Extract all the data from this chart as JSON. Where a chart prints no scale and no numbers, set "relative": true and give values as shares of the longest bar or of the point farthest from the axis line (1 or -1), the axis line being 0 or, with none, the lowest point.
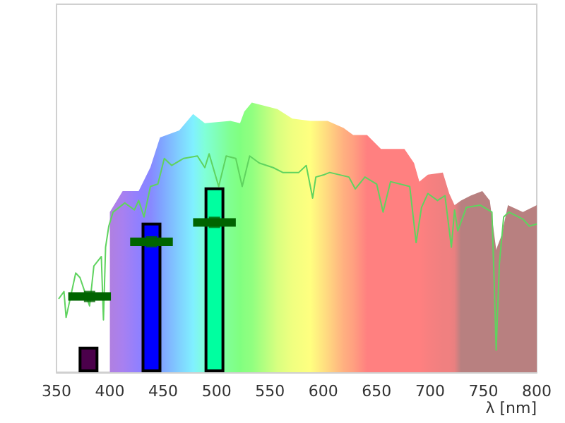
{
  "chart_data": {
    "type": "area",
    "relative": true,
    "xlabel": "λ [nm]",
    "xlim": [
      350,
      800
    ],
    "xticks": [
      350,
      400,
      450,
      500,
      550,
      600,
      650,
      700,
      750,
      800
    ],
    "grid": false,
    "series": [
      {
        "x": [
          400,
          412,
          427,
          438,
          447,
          465,
          478,
          489,
          513,
          522,
          526,
          533,
          557,
          571,
          588,
          604,
          619,
          628,
          641,
          654,
          676,
          685,
          690,
          698,
          712,
          718,
          723,
          729,
          738,
          749,
          756,
          762,
          767,
          773,
          787,
          800
        ],
        "values": [
          0.594,
          0.672,
          0.672,
          0.76,
          0.871,
          0.897,
          0.958,
          0.924,
          0.932,
          0.924,
          0.967,
          1,
          0.976,
          0.941,
          0.932,
          0.932,
          0.906,
          0.88,
          0.88,
          0.828,
          0.828,
          0.776,
          0.707,
          0.733,
          0.741,
          0.663,
          0.62,
          0.637,
          0.655,
          0.672,
          0.637,
          0.455,
          0.507,
          0.62,
          0.594,
          0.62
        ],
        "colors": [
          "#b080e0",
          "#a880f0",
          "#9080ff",
          "#8888ff",
          "#80a0ff",
          "#80d0ff",
          "#80f0ff",
          "#80ffd8",
          "#80ff90",
          "#80ff80",
          "#88ff80",
          "#90ff80",
          "#d8ff80",
          "#f0ff80",
          "#ffff80",
          "#ffd880",
          "#ffb080",
          "#ffa080",
          "#ff8080",
          "#ff8080",
          "#ff8080",
          "#ff8080",
          "#ff8080",
          "#f88080",
          "#f08080",
          "#f08080",
          "#e88080",
          "#b88080",
          "#b88080",
          "#b88080",
          "#b88080",
          "#b88080",
          "#b88080",
          "#b88080",
          "#b88080",
          "#b88080"
        ]
      },
      {
        "type": "line",
        "color": "#5fd35f",
        "line_style": "solid",
        "marker": "none",
        "x": [
          352,
          357,
          359,
          368,
          372,
          381,
          385,
          392,
          394,
          396,
          399,
          403,
          414,
          423,
          427,
          432,
          438,
          445,
          451,
          458,
          469,
          482,
          489,
          493,
          502,
          509,
          518,
          524,
          531,
          540,
          553,
          562,
          577,
          584,
          590,
          593,
          601,
          606,
          624,
          630,
          639,
          650,
          656,
          663,
          681,
          687,
          692,
          698,
          707,
          714,
          720,
          723,
          726,
          734,
          747,
          758,
          760,
          762,
          765,
          769,
          774,
          787,
          793,
          800
        ],
        "values": [
          0.272,
          0.299,
          0.203,
          0.368,
          0.351,
          0.246,
          0.394,
          0.429,
          0.194,
          0.464,
          0.542,
          0.594,
          0.628,
          0.602,
          0.637,
          0.576,
          0.689,
          0.698,
          0.793,
          0.767,
          0.793,
          0.802,
          0.759,
          0.81,
          0.689,
          0.802,
          0.793,
          0.689,
          0.802,
          0.776,
          0.759,
          0.741,
          0.741,
          0.767,
          0.646,
          0.724,
          0.733,
          0.741,
          0.724,
          0.68,
          0.724,
          0.698,
          0.594,
          0.707,
          0.689,
          0.481,
          0.611,
          0.663,
          0.637,
          0.655,
          0.464,
          0.602,
          0.524,
          0.611,
          0.62,
          0.594,
          0.351,
          0.082,
          0.403,
          0.576,
          0.594,
          0.568,
          0.542,
          0.55
        ]
      },
      {
        "type": "scatter",
        "color": "#006400",
        "marker": "square",
        "x": [
          381,
          439,
          498
        ],
        "values": [
          0.281,
          0.484,
          0.556
        ],
        "xerrors": [
          20,
          20,
          20
        ]
      },
      {
        "type": "bar",
        "x": [
          380,
          439,
          498
        ],
        "values": [
          0.095,
          0.555,
          0.686
        ],
        "colors": [
          "#4b004b",
          "#0000ff",
          "#00ffa0"
        ]
      }
    ]
  }
}
